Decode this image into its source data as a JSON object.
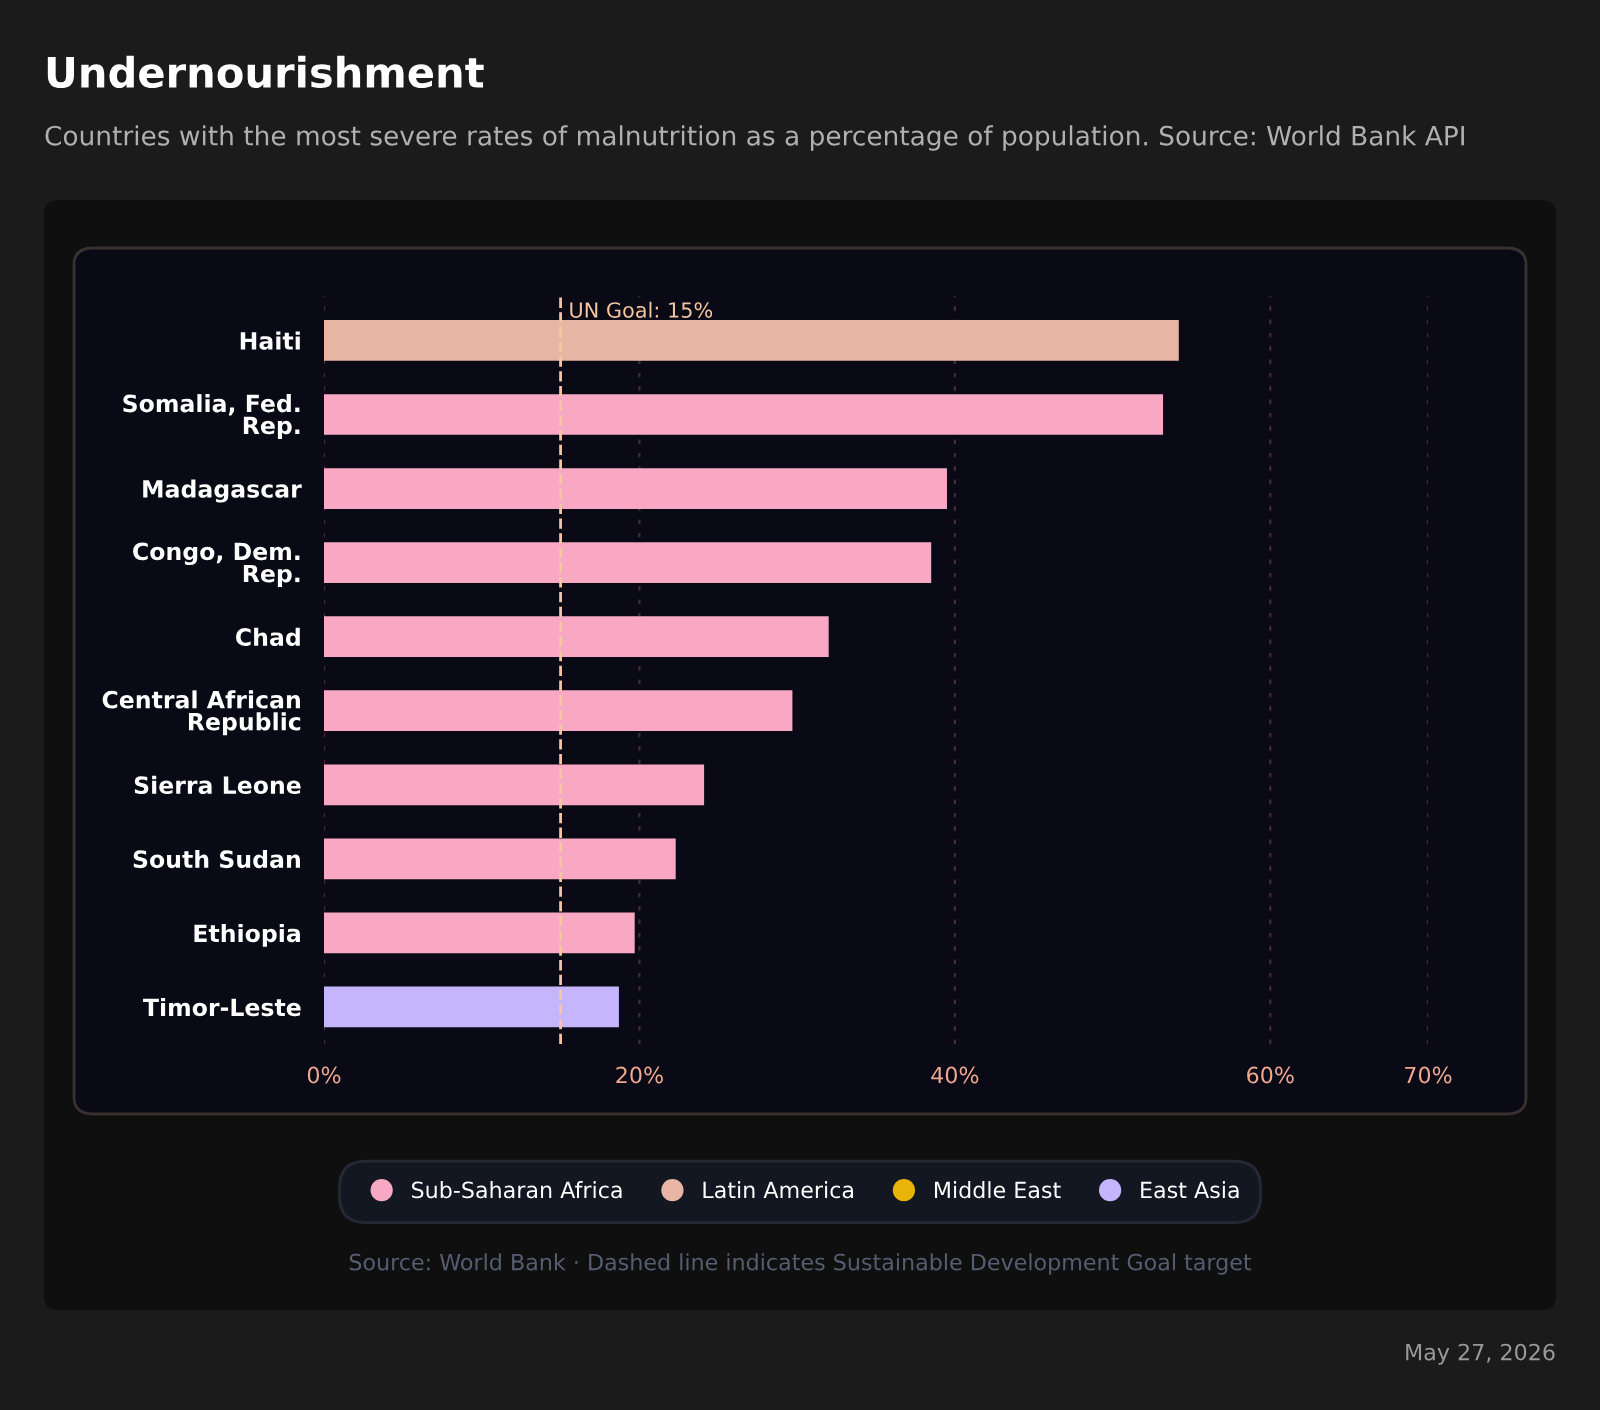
{
  "chart_data": {
    "type": "bar",
    "orientation": "horizontal",
    "title": "Undernourishment",
    "subtitle": "Countries with the most severe rates of malnutrition as a percentage of population. Source: World Bank API",
    "categories": [
      "Haiti",
      "Somalia, Fed.\nRep.",
      "Madagascar",
      "Congo, Dem.\nRep.",
      "Chad",
      "Central African\nRepublic",
      "Sierra Leone",
      "South Sudan",
      "Ethiopia",
      "Timor-Leste"
    ],
    "series": [
      {
        "name": "Sub-Saharan Africa",
        "color": "#f9a8c4",
        "values": [
          null,
          53.2,
          39.5,
          38.5,
          32.0,
          29.7,
          24.1,
          22.3,
          19.7,
          null
        ]
      },
      {
        "name": "Latin America",
        "color": "#e8b4a4",
        "values": [
          54.2,
          null,
          null,
          null,
          null,
          null,
          null,
          null,
          null,
          null
        ]
      },
      {
        "name": "Middle East",
        "color": "#eab308",
        "values": [
          null,
          null,
          null,
          null,
          null,
          null,
          null,
          null,
          null,
          null
        ]
      },
      {
        "name": "East Asia",
        "color": "#c4b5fd",
        "values": [
          null,
          null,
          null,
          null,
          null,
          null,
          null,
          null,
          null,
          18.7
        ]
      }
    ],
    "xlim": [
      0,
      70
    ],
    "xticks": [
      {
        "value": 0,
        "label": "0%"
      },
      {
        "value": 20,
        "label": "20%"
      },
      {
        "value": 40,
        "label": "40%"
      },
      {
        "value": 60,
        "label": "60%"
      },
      {
        "value": 70,
        "label": "70%"
      }
    ],
    "ref_lines": [
      {
        "axis": "x",
        "value": 15,
        "label": "UN Goal: 15%",
        "color": "#f5c6a0",
        "line_style": "dashed"
      }
    ],
    "grid": "x",
    "legend": "bottom",
    "annotations": [
      "Source: World Bank · Dashed line indicates Sustainable Development Goal target",
      "May 27, 2026"
    ]
  }
}
